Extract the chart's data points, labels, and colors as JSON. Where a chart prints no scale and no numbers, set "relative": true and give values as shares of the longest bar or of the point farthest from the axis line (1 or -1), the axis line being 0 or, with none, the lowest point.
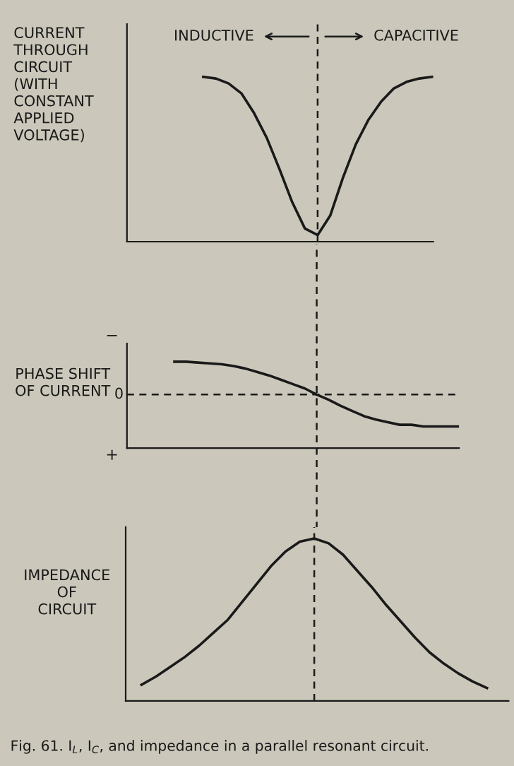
{
  "chart_data": [
    {
      "type": "line",
      "relative": true,
      "ylabel": "CURRENT\nTHROUGH\nCIRCUIT\n(WITH\nCONSTANT\nAPPLIED\nVOLTAGE)",
      "annotations": [
        "INDUCTIVE",
        "CAPACITIVE"
      ],
      "grid": false,
      "legend": false,
      "marker": "none",
      "line_style": "solid",
      "categories": [
        null,
        null,
        null,
        null,
        null,
        null,
        null,
        null,
        null,
        null,
        null,
        null,
        null,
        null,
        null,
        null,
        null,
        null,
        null,
        null,
        null,
        null,
        null,
        null,
        null
      ],
      "series": [
        {
          "color": "#1a1a1a",
          "values": [
            null,
            null,
            null,
            null,
            null,
            null,
            1.0,
            0.99,
            0.96,
            0.9,
            0.78,
            0.63,
            0.44,
            0.24,
            0.08,
            0.04,
            0.16,
            0.39,
            0.59,
            0.74,
            0.85,
            0.93,
            0.97,
            0.99,
            1.0
          ]
        }
      ]
    },
    {
      "type": "line",
      "relative": true,
      "ylabel": "PHASE SHIFT\nOF CURRENT",
      "annotations": [
        "−",
        "0",
        "+"
      ],
      "grid": false,
      "legend": false,
      "marker": "none",
      "line_style": "solid",
      "categories": [
        null,
        null,
        null,
        null,
        null,
        null,
        null,
        null,
        null,
        null,
        null,
        null,
        null,
        null,
        null,
        null,
        null,
        null,
        null,
        null,
        null,
        null,
        null,
        null,
        null,
        null,
        null,
        null,
        null
      ],
      "series": [
        {
          "color": "#1a1a1a",
          "values": [
            null,
            null,
            null,
            null,
            1.0,
            1.0,
            0.99,
            0.98,
            0.97,
            0.95,
            0.92,
            0.88,
            0.84,
            0.79,
            0.74,
            0.69,
            0.62,
            0.56,
            0.49,
            0.43,
            0.37,
            0.33,
            0.3,
            0.27,
            0.27,
            0.25,
            0.25,
            0.25,
            0.25
          ]
        }
      ],
      "ref_lines": [
        {
          "axis": "y",
          "value": 0.62,
          "line_style": "dashed",
          "color": "#1a1a1a"
        }
      ]
    },
    {
      "type": "line",
      "relative": true,
      "ylabel": "IMPEDANCE\nOF\nCIRCUIT",
      "annotations": [
        "Fig. 61. I$_{L}$, I$_{C}$, and impedance in a parallel resonant circuit."
      ],
      "grid": false,
      "legend": false,
      "marker": "none",
      "line_style": "solid",
      "categories": [
        null,
        null,
        null,
        null,
        null,
        null,
        null,
        null,
        null,
        null,
        null,
        null,
        null,
        null,
        null,
        null,
        null,
        null,
        null,
        null,
        null,
        null,
        null,
        null,
        null
      ],
      "series": [
        {
          "color": "#1a1a1a",
          "values": [
            0.1,
            0.15,
            0.21,
            0.27,
            0.34,
            0.42,
            0.5,
            0.61,
            0.72,
            0.83,
            0.92,
            0.98,
            1.0,
            0.97,
            0.9,
            0.8,
            0.7,
            0.59,
            0.49,
            0.39,
            0.3,
            0.23,
            0.17,
            0.12,
            0.08
          ]
        }
      ]
    }
  ]
}
